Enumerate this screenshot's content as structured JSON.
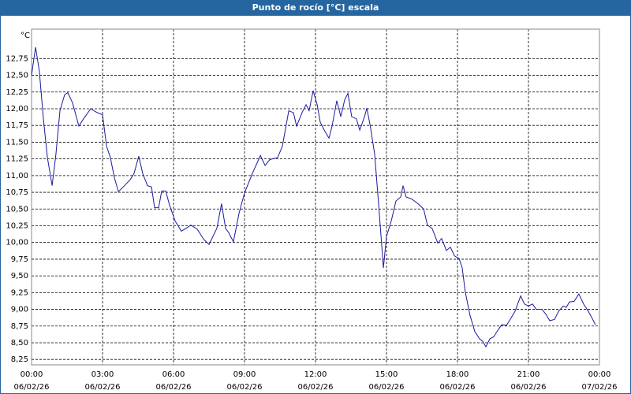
{
  "chart_data": {
    "type": "line",
    "title": "Punto de rocío [°C] escala",
    "y_label": "°C",
    "x": [
      0,
      0.17,
      0.33,
      0.5,
      0.67,
      0.87,
      1.03,
      1.2,
      1.4,
      1.53,
      1.73,
      2.0,
      2.2,
      2.5,
      2.73,
      3.0,
      3.17,
      3.33,
      3.5,
      3.67,
      3.93,
      4.17,
      4.33,
      4.53,
      4.7,
      4.9,
      5.07,
      5.2,
      5.37,
      5.5,
      5.67,
      5.83,
      6.07,
      6.33,
      6.57,
      6.73,
      7.0,
      7.27,
      7.5,
      7.83,
      8.03,
      8.2,
      8.33,
      8.53,
      8.77,
      9.0,
      9.33,
      9.67,
      9.87,
      10.07,
      10.4,
      10.6,
      10.87,
      11.07,
      11.2,
      11.43,
      11.6,
      11.73,
      11.9,
      12.07,
      12.2,
      12.37,
      12.57,
      12.7,
      12.9,
      13.07,
      13.23,
      13.37,
      13.53,
      13.73,
      13.87,
      14.07,
      14.17,
      14.33,
      14.5,
      14.67,
      14.87,
      15.0,
      15.2,
      15.4,
      15.6,
      15.7,
      15.83,
      16.07,
      16.33,
      16.57,
      16.73,
      16.93,
      17.17,
      17.33,
      17.53,
      17.7,
      17.87,
      18.07,
      18.2,
      18.33,
      18.53,
      18.73,
      18.93,
      19.07,
      19.2,
      19.37,
      19.53,
      19.73,
      19.87,
      20.07,
      20.23,
      20.43,
      20.67,
      20.83,
      21.0,
      21.17,
      21.33,
      21.57,
      21.73,
      21.9,
      22.1,
      22.27,
      22.47,
      22.6,
      22.73,
      22.93,
      23.13,
      23.33,
      23.53,
      23.67,
      23.83
    ],
    "series": [
      {
        "name": "Punto de rocío",
        "color": "#1a1aa0",
        "values": [
          12.5,
          12.92,
          12.56,
          11.85,
          11.27,
          10.85,
          11.32,
          11.97,
          12.21,
          12.24,
          12.09,
          11.74,
          11.85,
          12.0,
          11.95,
          11.91,
          11.44,
          11.27,
          10.97,
          10.76,
          10.85,
          10.94,
          11.03,
          11.29,
          11.03,
          10.85,
          10.83,
          10.52,
          10.52,
          10.77,
          10.77,
          10.56,
          10.32,
          10.17,
          10.22,
          10.26,
          10.2,
          10.05,
          9.97,
          10.21,
          10.58,
          10.21,
          10.15,
          10.01,
          10.44,
          10.74,
          11.03,
          11.3,
          11.15,
          11.24,
          11.27,
          11.44,
          11.97,
          11.94,
          11.74,
          11.94,
          12.06,
          11.97,
          12.27,
          12.06,
          11.8,
          11.68,
          11.56,
          11.74,
          12.12,
          11.88,
          12.13,
          12.23,
          11.88,
          11.85,
          11.68,
          11.88,
          12.01,
          11.71,
          11.32,
          10.56,
          9.62,
          10.09,
          10.32,
          10.62,
          10.68,
          10.85,
          10.68,
          10.65,
          10.58,
          10.5,
          10.26,
          10.21,
          9.99,
          10.06,
          9.88,
          9.93,
          9.8,
          9.76,
          9.62,
          9.26,
          8.91,
          8.67,
          8.56,
          8.52,
          8.44,
          8.56,
          8.59,
          8.7,
          8.77,
          8.76,
          8.85,
          8.97,
          9.2,
          9.08,
          9.05,
          9.08,
          9.0,
          9.0,
          8.93,
          8.83,
          8.85,
          8.97,
          9.05,
          9.03,
          9.11,
          9.12,
          9.23,
          9.08,
          8.97,
          8.88,
          8.77
        ]
      }
    ],
    "xlim": [
      0,
      24
    ],
    "ylim": [
      8.17,
      13.19
    ],
    "xticks": [
      {
        "value": 0,
        "label": "00:00",
        "date": "06/02/26"
      },
      {
        "value": 3,
        "label": "03:00",
        "date": "06/02/26"
      },
      {
        "value": 6,
        "label": "06:00",
        "date": "06/02/26"
      },
      {
        "value": 9,
        "label": "09:00",
        "date": "06/02/26"
      },
      {
        "value": 12,
        "label": "12:00",
        "date": "06/02/26"
      },
      {
        "value": 15,
        "label": "15:00",
        "date": "06/02/26"
      },
      {
        "value": 18,
        "label": "18:00",
        "date": "06/02/26"
      },
      {
        "value": 21,
        "label": "21:00",
        "date": "06/02/26"
      },
      {
        "value": 24,
        "label": "00:00",
        "date": "07/02/26"
      }
    ],
    "yticks": [
      {
        "value": 8.25,
        "label": "8,25"
      },
      {
        "value": 8.5,
        "label": "8,50"
      },
      {
        "value": 8.75,
        "label": "8,75"
      },
      {
        "value": 9,
        "label": "9,00"
      },
      {
        "value": 9.25,
        "label": "9,25"
      },
      {
        "value": 9.5,
        "label": "9,50"
      },
      {
        "value": 9.75,
        "label": "9,75"
      },
      {
        "value": 10,
        "label": "10,00"
      },
      {
        "value": 10.25,
        "label": "10,25"
      },
      {
        "value": 10.5,
        "label": "10,50"
      },
      {
        "value": 10.75,
        "label": "10,75"
      },
      {
        "value": 11,
        "label": "11,00"
      },
      {
        "value": 11.25,
        "label": "11,25"
      },
      {
        "value": 11.5,
        "label": "11,50"
      },
      {
        "value": 11.75,
        "label": "11,75"
      },
      {
        "value": 12,
        "label": "12,00"
      },
      {
        "value": 12.25,
        "label": "12,25"
      },
      {
        "value": 12.5,
        "label": "12,50"
      },
      {
        "value": 12.75,
        "label": "12,75"
      }
    ],
    "grid": true
  }
}
